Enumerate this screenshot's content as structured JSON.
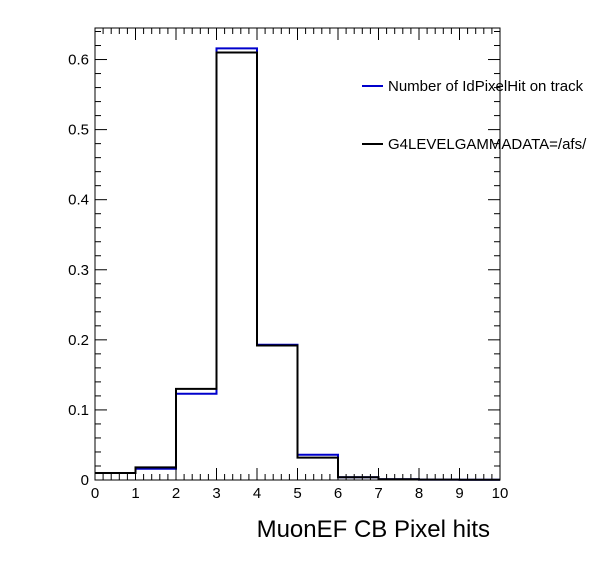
{
  "chart_data": {
    "type": "histogram",
    "title": "",
    "xlabel": "MuonEF CB Pixel hits",
    "ylabel": "",
    "xlim": [
      0,
      10
    ],
    "ylim": [
      0,
      0.645
    ],
    "bin_edges": [
      0,
      1,
      2,
      3,
      4,
      5,
      6,
      7,
      8,
      9,
      10
    ],
    "x_ticks": [
      "0",
      "1",
      "2",
      "3",
      "4",
      "5",
      "6",
      "7",
      "8",
      "9",
      "10"
    ],
    "y_ticks": [
      {
        "value": 0,
        "label": "0"
      },
      {
        "value": 0.1,
        "label": "0.1"
      },
      {
        "value": 0.2,
        "label": "0.2"
      },
      {
        "value": 0.3,
        "label": "0.3"
      },
      {
        "value": 0.4,
        "label": "0.4"
      },
      {
        "value": 0.5,
        "label": "0.5"
      },
      {
        "value": 0.6,
        "label": "0.6"
      }
    ],
    "grid": false,
    "legend_position": "top-right",
    "series": [
      {
        "name": "Number of IdPixelHit on track",
        "color": "#0000cc",
        "values": [
          0.01,
          0.016,
          0.123,
          0.616,
          0.193,
          0.036,
          0.004,
          0.001,
          0.0005,
          0.0003
        ]
      },
      {
        "name": "G4LEVELGAMMADATA=/afs/",
        "color": "#000000",
        "values": [
          0.01,
          0.018,
          0.13,
          0.61,
          0.192,
          0.032,
          0.004,
          0.001,
          0.0005,
          0.0003
        ]
      }
    ]
  }
}
